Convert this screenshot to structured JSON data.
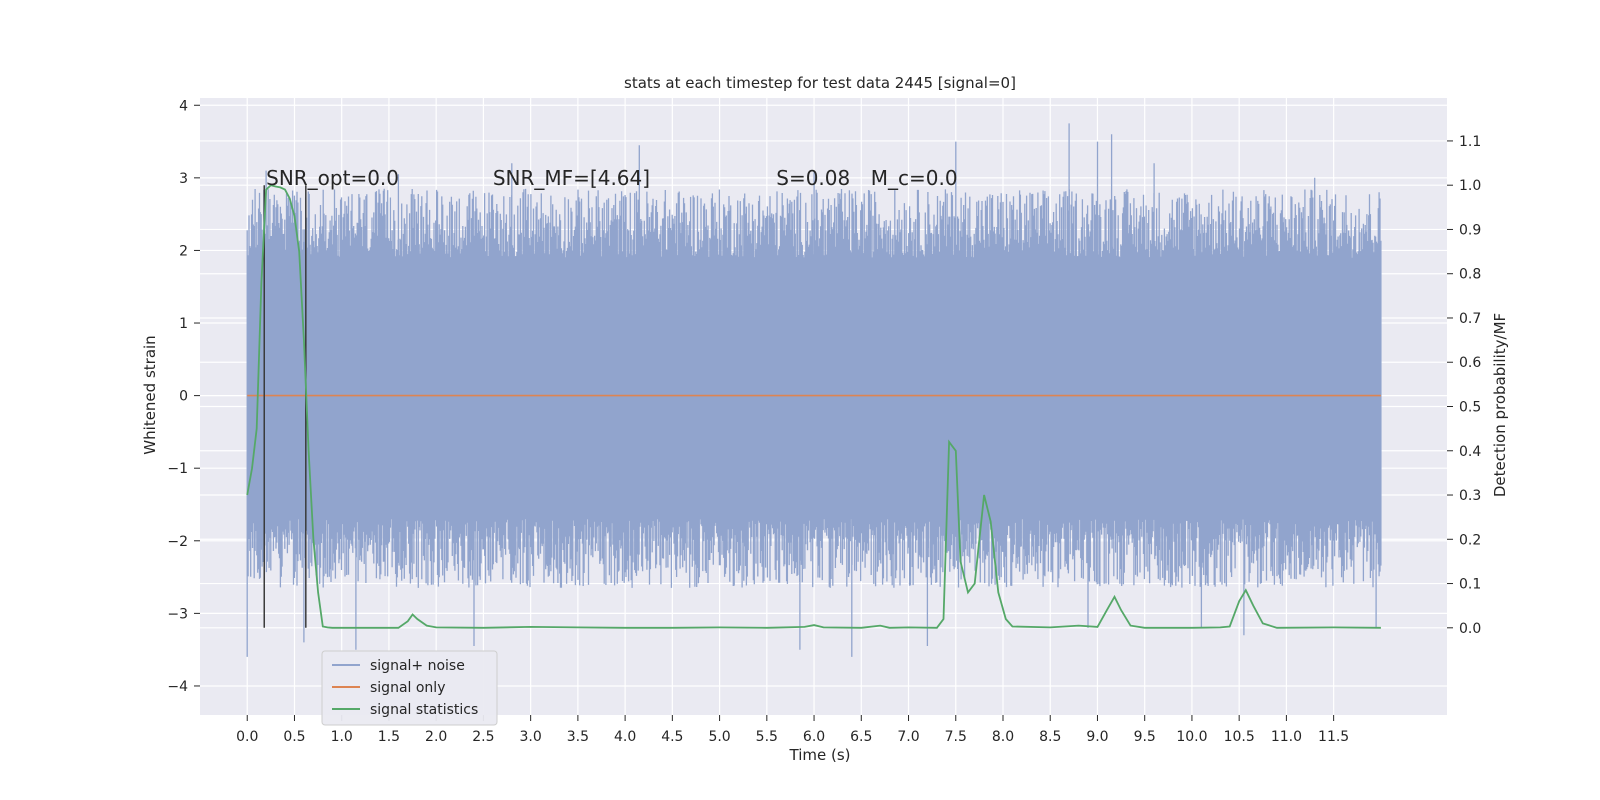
{
  "chart_data": {
    "type": "line",
    "title": "stats at each timestep for test data 2445 [signal=0]",
    "xlabel": "Time (s)",
    "ylabel": "Whitened strain",
    "y2label": "Detection probability/MF",
    "xlim": [
      -0.5,
      12.7
    ],
    "ylim": [
      -4.4,
      4.1
    ],
    "y2lim": [
      -0.197,
      1.197
    ],
    "x_ticks": [
      0.0,
      0.5,
      1.0,
      1.5,
      2.0,
      2.5,
      3.0,
      3.5,
      4.0,
      4.5,
      5.0,
      5.5,
      6.0,
      6.5,
      7.0,
      7.5,
      8.0,
      8.5,
      9.0,
      9.5,
      10.0,
      10.5,
      11.0,
      11.5
    ],
    "x_tick_labels": [
      "0.0",
      "0.5",
      "1.0",
      "1.5",
      "2.0",
      "2.5",
      "3.0",
      "3.5",
      "4.0",
      "4.5",
      "5.0",
      "5.5",
      "6.0",
      "6.5",
      "7.0",
      "7.5",
      "8.0",
      "8.5",
      "9.0",
      "9.5",
      "10.0",
      "10.5",
      "11.0",
      "11.5"
    ],
    "y_ticks": [
      -4,
      -3,
      -2,
      -1,
      0,
      1,
      2,
      3,
      4
    ],
    "y_tick_labels": [
      "−4",
      "−3",
      "−2",
      "−1",
      "0",
      "1",
      "2",
      "3",
      "4"
    ],
    "y2_ticks": [
      0.0,
      0.1,
      0.2,
      0.3,
      0.4,
      0.5,
      0.6,
      0.7,
      0.8,
      0.9,
      1.0,
      1.1
    ],
    "y2_tick_labels": [
      "0.0",
      "0.1",
      "0.2",
      "0.3",
      "0.4",
      "0.5",
      "0.6",
      "0.7",
      "0.8",
      "0.9",
      "1.0",
      "1.1"
    ],
    "grid": true,
    "legend_position": "lower-left",
    "legend": [
      {
        "label": "signal+ noise",
        "color": "#91a4cd"
      },
      {
        "label": "signal only",
        "color": "#dd8452"
      },
      {
        "label": "signal statistics",
        "color": "#55a868"
      }
    ],
    "annotations": [
      {
        "text": "SNR_opt=0.0",
        "x": 0.2,
        "y": 3.0
      },
      {
        "text": "SNR_MF=[4.64]",
        "x": 2.6,
        "y": 3.0
      },
      {
        "text": "S=0.08",
        "x": 5.6,
        "y": 3.0
      },
      {
        "text": "M_c=0.0",
        "x": 6.6,
        "y": 3.0
      }
    ],
    "vertical_markers_x": [
      0.18,
      0.62
    ],
    "series": [
      {
        "name": "signal+ noise",
        "x_range": [
          0.0,
          12.0
        ],
        "description": "dense noisy strain, typical range about -1.8 to +2.3, peaks up to ~3.75 near t=8.7 and down to ~-3.6",
        "peaks_max": [
          [
            0.2,
            3.1
          ],
          [
            1.6,
            3.05
          ],
          [
            2.8,
            3.2
          ],
          [
            4.15,
            3.45
          ],
          [
            6.0,
            3.1
          ],
          [
            7.5,
            3.5
          ],
          [
            8.7,
            3.75
          ],
          [
            9.0,
            3.5
          ],
          [
            9.15,
            3.6
          ],
          [
            9.6,
            3.2
          ],
          [
            11.3,
            3.0
          ]
        ],
        "peaks_min": [
          [
            0.0,
            -3.6
          ],
          [
            0.6,
            -3.4
          ],
          [
            1.15,
            -3.5
          ],
          [
            2.4,
            -3.45
          ],
          [
            5.85,
            -3.5
          ],
          [
            6.4,
            -3.6
          ],
          [
            7.2,
            -3.45
          ],
          [
            8.9,
            -3.2
          ],
          [
            10.1,
            -3.2
          ],
          [
            10.55,
            -3.3
          ],
          [
            11.95,
            -3.2
          ]
        ]
      },
      {
        "name": "signal only",
        "x": [
          0.0,
          12.0
        ],
        "values": [
          0.0,
          0.0
        ]
      },
      {
        "name": "signal statistics",
        "axis": "right",
        "x": [
          0.0,
          0.05,
          0.1,
          0.15,
          0.2,
          0.25,
          0.3,
          0.35,
          0.4,
          0.45,
          0.5,
          0.55,
          0.6,
          0.65,
          0.7,
          0.75,
          0.8,
          0.85,
          0.9,
          1.0,
          1.2,
          1.4,
          1.6,
          1.7,
          1.75,
          1.8,
          1.9,
          2.0,
          2.5,
          3.0,
          3.5,
          4.0,
          4.5,
          5.0,
          5.5,
          5.9,
          6.0,
          6.1,
          6.5,
          6.7,
          6.8,
          7.0,
          7.3,
          7.37,
          7.43,
          7.5,
          7.55,
          7.63,
          7.7,
          7.8,
          7.87,
          7.95,
          8.03,
          8.1,
          8.5,
          8.8,
          9.0,
          9.1,
          9.18,
          9.25,
          9.35,
          9.5,
          10.0,
          10.3,
          10.4,
          10.5,
          10.57,
          10.65,
          10.75,
          10.9,
          11.5,
          12.0
        ],
        "values": [
          0.3,
          0.36,
          0.45,
          0.78,
          0.99,
          1.0,
          0.997,
          0.995,
          0.99,
          0.97,
          0.93,
          0.85,
          0.65,
          0.4,
          0.2,
          0.08,
          0.003,
          0.001,
          0.0,
          0.0,
          0.0,
          0.0,
          0.0,
          0.015,
          0.03,
          0.02,
          0.005,
          0.001,
          0.0,
          0.002,
          0.001,
          0.0,
          0.0,
          0.001,
          0.0,
          0.002,
          0.006,
          0.001,
          0.0,
          0.005,
          0.0,
          0.001,
          0.0,
          0.02,
          0.42,
          0.4,
          0.15,
          0.08,
          0.1,
          0.3,
          0.24,
          0.08,
          0.02,
          0.003,
          0.001,
          0.005,
          0.002,
          0.04,
          0.07,
          0.04,
          0.005,
          0.0,
          0.0,
          0.001,
          0.003,
          0.06,
          0.085,
          0.05,
          0.01,
          0.0,
          0.001,
          0.0
        ]
      }
    ]
  }
}
